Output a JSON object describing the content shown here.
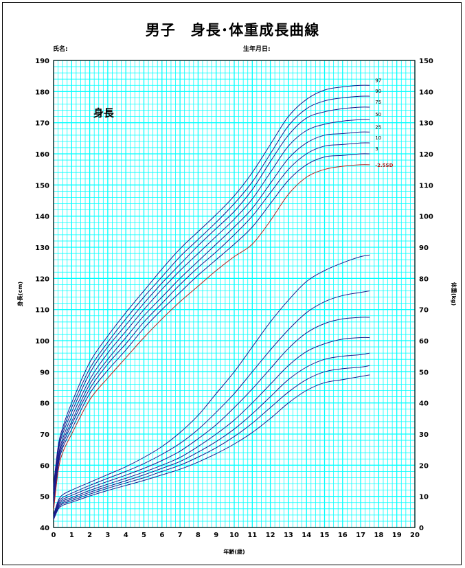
{
  "title": "男子　身長･体重成長曲線",
  "name_label": "氏名:",
  "birth_label": "生年月日:",
  "colors": {
    "grid": "#00ffff",
    "curve": "#1a1a8c",
    "sd_curve": "#b02020",
    "background": "#ffffff"
  },
  "chart_data": {
    "type": "line",
    "title": "",
    "xlabel": "年齢(歳)",
    "ylabel_left": "身長(cm)",
    "ylabel_right": "体重(kg)",
    "xlim": [
      0,
      20
    ],
    "ylim_left": [
      40,
      190
    ],
    "ylim_right": [
      0,
      150
    ],
    "x_ticks": [
      0,
      1,
      2,
      3,
      4,
      5,
      6,
      7,
      8,
      9,
      10,
      11,
      12,
      13,
      14,
      15,
      16,
      17,
      18,
      19,
      20
    ],
    "y_ticks_left": [
      40,
      50,
      60,
      70,
      80,
      90,
      100,
      110,
      120,
      130,
      140,
      150,
      160,
      170,
      180,
      190
    ],
    "y_ticks_right": [
      0,
      10,
      20,
      30,
      40,
      50,
      60,
      70,
      80,
      90,
      100,
      110,
      120,
      130,
      140,
      150
    ],
    "grid": true,
    "height_annotation": "身長",
    "x_age": [
      0,
      0.25,
      0.5,
      1,
      2,
      3,
      4,
      5,
      6,
      7,
      8,
      9,
      10,
      11,
      12,
      13,
      14,
      15,
      16,
      17,
      17.5
    ],
    "height_series": [
      {
        "name": "97",
        "values": [
          53.5,
          66,
          72,
          80,
          93,
          101.5,
          109,
          116,
          123,
          129.5,
          135,
          140.5,
          146.5,
          154,
          163,
          172,
          177.5,
          180.5,
          181.5,
          182,
          182
        ]
      },
      {
        "name": "90",
        "values": [
          52.5,
          65,
          71,
          78.5,
          91,
          99.5,
          107,
          114,
          120.5,
          127,
          132.5,
          138,
          144,
          151,
          160,
          169,
          174.5,
          177,
          178,
          178.5,
          178.5
        ]
      },
      {
        "name": "75",
        "values": [
          51.5,
          64,
          70,
          77,
          89.5,
          98,
          105,
          112,
          118.5,
          124.5,
          130.5,
          136,
          141.5,
          148.5,
          157.5,
          166,
          171.5,
          173.5,
          174.5,
          175,
          175
        ]
      },
      {
        "name": "50",
        "values": [
          50,
          62.5,
          68.5,
          75.5,
          87.5,
          96,
          103,
          110,
          116.5,
          122.5,
          128,
          133.5,
          139,
          145.5,
          154,
          162.5,
          167.5,
          169.5,
          170.5,
          171,
          171
        ]
      },
      {
        "name": "25",
        "values": [
          49,
          61.5,
          67.5,
          74,
          86,
          94,
          101,
          108,
          114,
          120,
          125.5,
          131,
          136.5,
          142.5,
          150.5,
          158.5,
          163.5,
          166,
          166.5,
          167,
          167
        ]
      },
      {
        "name": "10",
        "values": [
          48,
          60.5,
          66.5,
          73,
          84.5,
          92.5,
          99,
          106,
          112,
          118,
          123.5,
          128.5,
          134,
          140,
          147.5,
          155,
          160,
          162.5,
          163,
          163.5,
          163.5
        ]
      },
      {
        "name": "3",
        "values": [
          47,
          59.5,
          65.5,
          71.5,
          83,
          90.5,
          97,
          104,
          110,
          115.5,
          121,
          126,
          131,
          136.5,
          144,
          151.5,
          156.5,
          159,
          159.5,
          160,
          160
        ]
      },
      {
        "name": "-2.5SD",
        "values": [
          45.5,
          58,
          64,
          70,
          81,
          88,
          94.5,
          101,
          107,
          112.5,
          117.5,
          122.5,
          127,
          131,
          138.5,
          147,
          152.5,
          155,
          156,
          156.5,
          156.5
        ]
      }
    ],
    "weight_series": [
      {
        "name": "97",
        "values": [
          4,
          8.5,
          10.5,
          12,
          14.5,
          17,
          19.5,
          22.5,
          26,
          30.5,
          36,
          43,
          50,
          58,
          66,
          73,
          79,
          82.5,
          85,
          87,
          87.5
        ]
      },
      {
        "name": "90",
        "values": [
          3.6,
          8,
          9.6,
          11,
          13.5,
          15.8,
          18,
          20.5,
          23.5,
          27,
          31.5,
          37,
          43,
          50,
          57,
          63.5,
          69,
          72.5,
          74.5,
          75.5,
          76
        ]
      },
      {
        "name": "75",
        "values": [
          3.4,
          7.5,
          9,
          10.3,
          12.7,
          14.8,
          16.8,
          19,
          21.5,
          24.5,
          28.5,
          33,
          38.5,
          44.5,
          51,
          57.5,
          62.5,
          65.5,
          67,
          67.5,
          67.5
        ]
      },
      {
        "name": "50",
        "values": [
          3.1,
          7,
          8.5,
          9.6,
          11.9,
          13.9,
          15.8,
          17.8,
          20,
          22.5,
          26,
          30,
          34.5,
          40,
          46,
          52,
          56.5,
          59,
          60.5,
          61,
          61
        ]
      },
      {
        "name": "25",
        "values": [
          2.9,
          6.6,
          8,
          9.1,
          11.3,
          13.2,
          15,
          16.9,
          19,
          21.2,
          24.2,
          27.6,
          31.6,
          36.5,
          42,
          47.5,
          51.5,
          54,
          55,
          55.5,
          56
        ]
      },
      {
        "name": "10",
        "values": [
          2.7,
          6.2,
          7.6,
          8.6,
          10.7,
          12.6,
          14.3,
          16,
          18,
          20,
          22.6,
          25.6,
          29.2,
          33.5,
          38.5,
          43.5,
          47.5,
          50,
          51,
          51.5,
          52
        ]
      },
      {
        "name": "3",
        "values": [
          2.5,
          5.8,
          7.1,
          8.1,
          10.1,
          11.9,
          13.5,
          15.1,
          16.9,
          18.7,
          21,
          23.7,
          26.8,
          30.5,
          35,
          40,
          44,
          46.5,
          47.5,
          48.5,
          49
        ]
      }
    ]
  }
}
